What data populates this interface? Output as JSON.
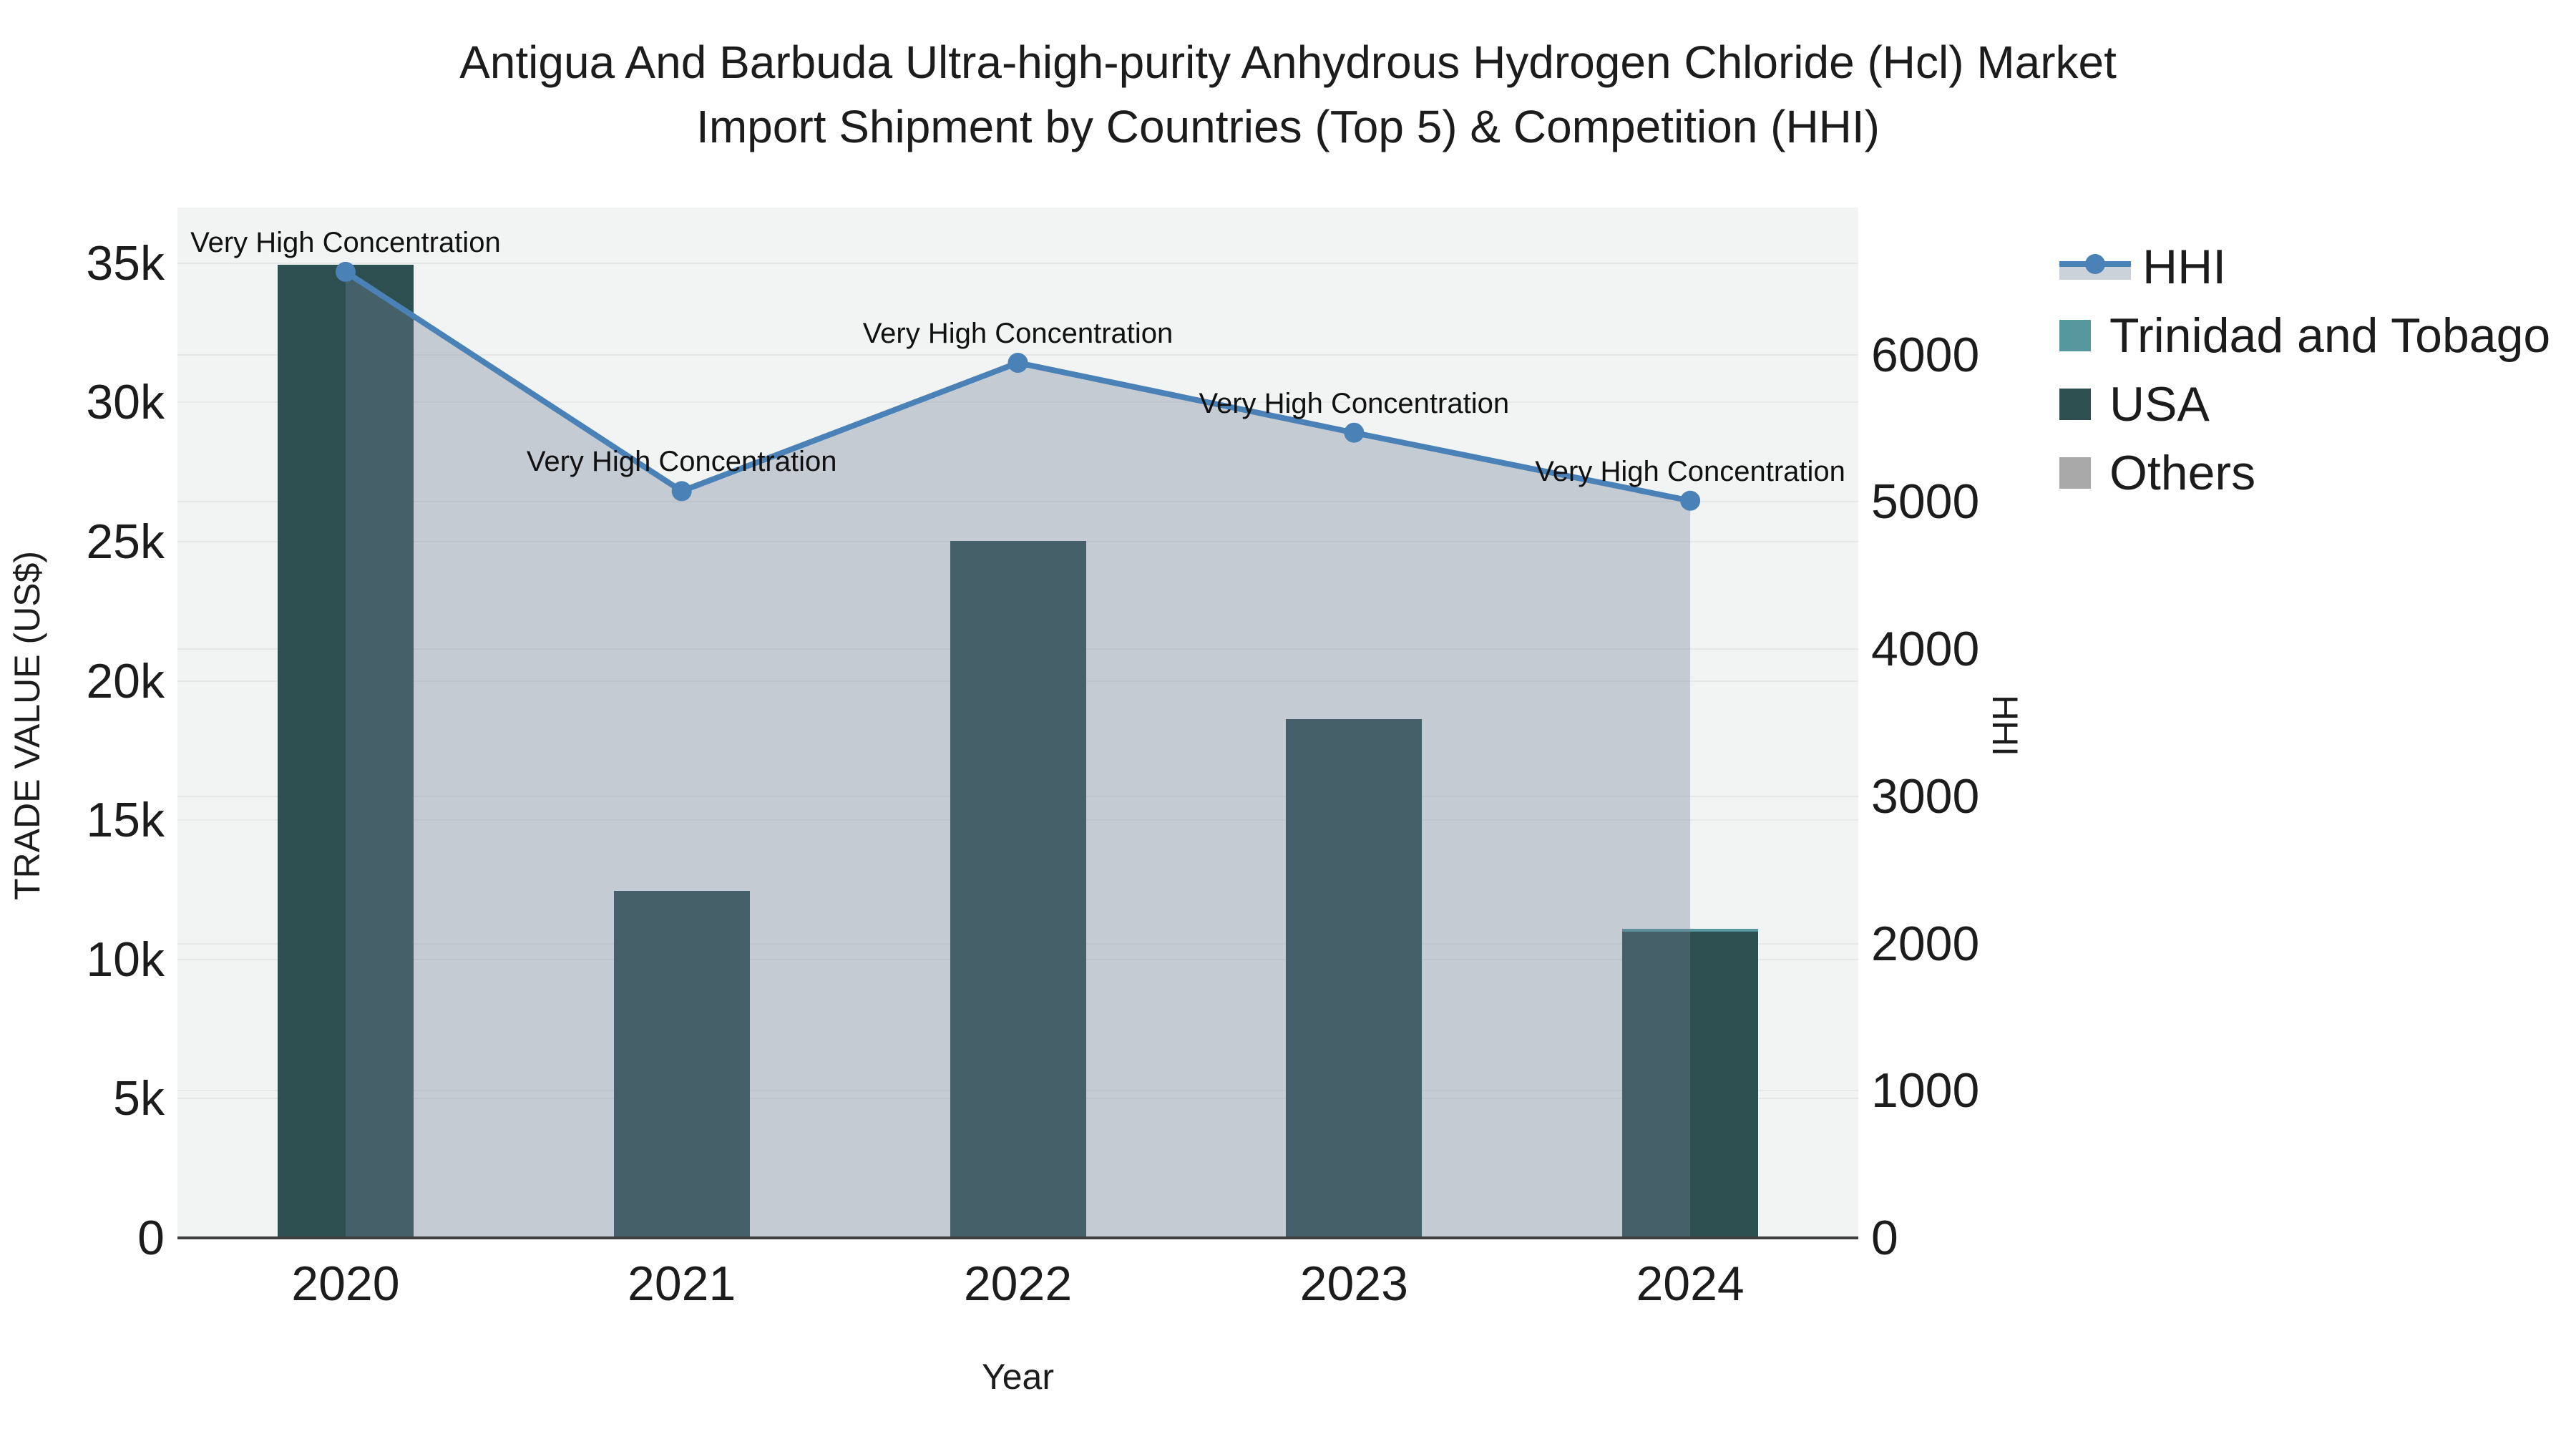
{
  "title": {
    "line1": "Antigua And Barbuda Ultra-high-purity Anhydrous Hydrogen Chloride (Hcl) Market",
    "line2": "Import Shipment by Countries (Top 5) & Competition (HHI)"
  },
  "colors": {
    "plot_bg": "#f2f3f3",
    "gridline": "#e6e8e8",
    "axis_line": "#3f3f3f",
    "hhi_line": "#4a81b6",
    "hhi_fill": "rgba(113,128,153,0.35)",
    "usa": "#2e4f50",
    "trinidad_and_tobago": "#57989e",
    "others": "#a9a9a9",
    "text": "#1c1c1c"
  },
  "legend": [
    {
      "label": "HHI",
      "type": "line",
      "color": "#4a81b6",
      "fill": "#ccd2da"
    },
    {
      "label": "Trinidad and Tobago",
      "type": "square",
      "color": "#57989e"
    },
    {
      "label": "USA",
      "type": "square",
      "color": "#2e4f50"
    },
    {
      "label": "Others",
      "type": "square",
      "color": "#a9a9a9"
    }
  ],
  "chart_data": {
    "type": "bar+line",
    "categories": [
      "2020",
      "2021",
      "2022",
      "2023",
      "2024"
    ],
    "bar_series": [
      {
        "name": "USA",
        "color": "#2e4f50",
        "stack_order": 1,
        "values": [
          34950,
          12470,
          25020,
          18620,
          11000
        ]
      },
      {
        "name": "Trinidad and Tobago",
        "color": "#57989e",
        "stack_order": 2,
        "values": [
          0,
          0,
          0,
          0,
          100
        ]
      },
      {
        "name": "Others",
        "color": "#a9a9a9",
        "stack_order": 3,
        "values": [
          0,
          0,
          0,
          0,
          0
        ]
      }
    ],
    "line_series": {
      "name": "HHI",
      "color": "#4a81b6",
      "fill": "rgba(113,128,153,0.35)",
      "values": [
        6563,
        5073,
        5945,
        5470,
        5008
      ]
    },
    "annotations": [
      {
        "category": "2020",
        "text": "Very High Concentration"
      },
      {
        "category": "2021",
        "text": "Very High Concentration"
      },
      {
        "category": "2022",
        "text": "Very High Concentration"
      },
      {
        "category": "2023",
        "text": "Very High Concentration"
      },
      {
        "category": "2024",
        "text": "Very High Concentration"
      }
    ],
    "left_axis": {
      "title": "TRADE VALUE (US$)",
      "range": [
        0,
        37000
      ],
      "tick_labels": [
        "0",
        "5k",
        "10k",
        "15k",
        "20k",
        "25k",
        "30k",
        "35k"
      ],
      "tick_values": [
        0,
        5000,
        10000,
        15000,
        20000,
        25000,
        30000,
        35000
      ]
    },
    "right_axis": {
      "title": "HHI",
      "range": [
        0,
        7000
      ],
      "tick_labels": [
        "0",
        "1000",
        "2000",
        "3000",
        "4000",
        "5000",
        "6000"
      ],
      "tick_values": [
        0,
        1000,
        2000,
        3000,
        4000,
        5000,
        6000
      ]
    },
    "x_axis": {
      "title": "Year"
    }
  }
}
